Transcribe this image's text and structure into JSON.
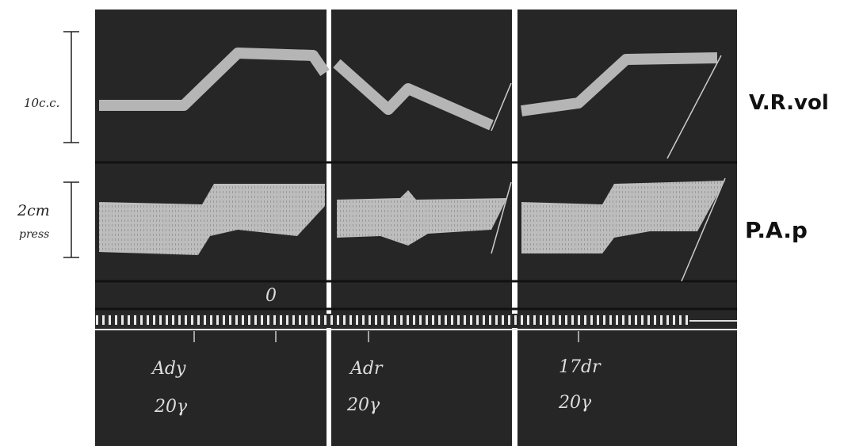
{
  "scale_labels": {
    "volume": "10c.c.",
    "pressure": [
      "2cm",
      "press"
    ]
  },
  "trace_labels": {
    "volume": "V.R.vol",
    "pressure": "P.A.p"
  },
  "marker": "0",
  "panels": [
    {
      "drug": "Ady",
      "dose": "20γ"
    },
    {
      "drug": "Adr",
      "dose": "20γ"
    },
    {
      "drug": "17dr",
      "dose": "20γ"
    }
  ]
}
